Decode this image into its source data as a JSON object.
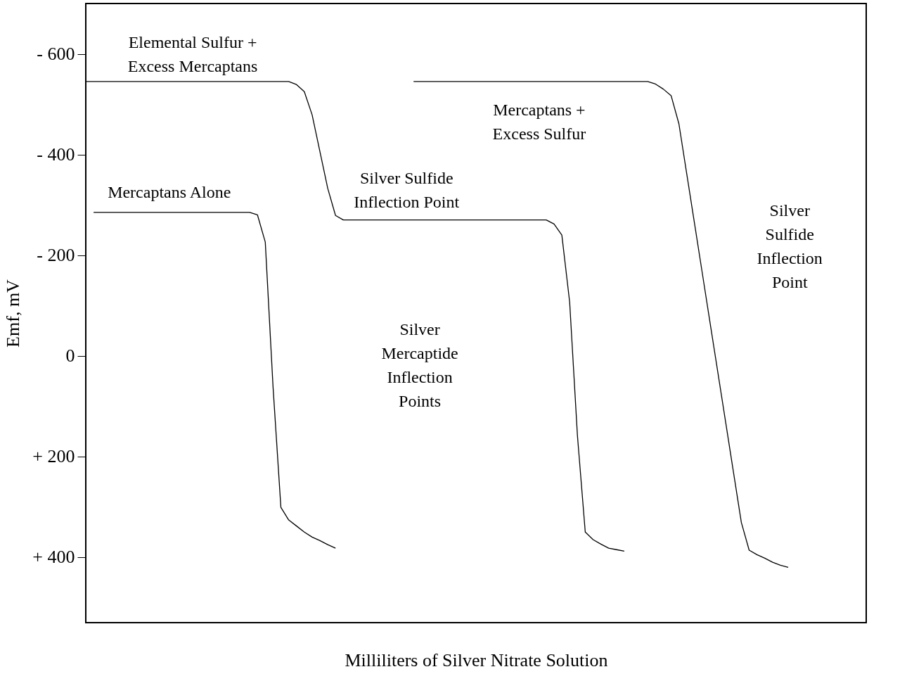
{
  "chart_data": {
    "type": "line",
    "xlabel": "Milliliters of Silver Nitrate Solution",
    "ylabel": "Emf, mV",
    "categories": [
      null,
      null,
      null,
      null,
      null,
      null,
      null,
      null,
      null,
      null,
      null,
      null,
      null,
      null,
      null,
      null,
      null,
      null,
      null,
      null,
      null,
      null,
      null,
      null,
      null,
      null,
      null,
      null,
      null,
      null,
      null,
      null,
      null,
      null,
      null,
      null,
      null,
      null,
      null,
      null,
      null,
      null,
      null,
      null,
      null,
      null,
      null,
      null,
      null,
      null,
      null,
      null,
      null,
      null,
      null,
      null,
      null,
      null,
      null,
      null,
      null,
      null,
      null,
      null,
      null,
      null,
      null,
      null,
      null,
      null,
      null,
      null,
      null,
      null,
      null,
      null,
      null,
      null,
      null,
      null,
      null,
      null,
      null,
      null,
      null,
      null,
      null,
      null,
      null,
      null,
      null,
      null,
      null,
      null,
      null,
      null,
      null,
      null,
      null,
      null,
      null
    ],
    "ylim": [
      530,
      -700
    ],
    "yticks": [
      {
        "value": -600,
        "label": "- 600"
      },
      {
        "value": -400,
        "label": "- 400"
      },
      {
        "value": -200,
        "label": "- 200"
      },
      {
        "value": 0,
        "label": "0"
      },
      {
        "value": 200,
        "label": "+ 200"
      },
      {
        "value": 400,
        "label": "+ 400"
      }
    ],
    "tick_labels": "y",
    "grid": false,
    "legend": false,
    "marker": "none",
    "line_style": "solid",
    "series": [
      {
        "color": "#000000",
        "values": [
          null,
          -285,
          -285,
          -285,
          -285,
          -285,
          -285,
          -285,
          -285,
          -285,
          -285,
          -285,
          -285,
          -285,
          -285,
          -285,
          -285,
          -285,
          -285,
          -285,
          -285,
          -285,
          -280,
          -226,
          63,
          301,
          326,
          338,
          350,
          360,
          367,
          375,
          382,
          null,
          null,
          null,
          null,
          null,
          null,
          null,
          null,
          null,
          null,
          null,
          null,
          null,
          null,
          null,
          null,
          null,
          null,
          null,
          null,
          null,
          null,
          null,
          null,
          null,
          null,
          null,
          null,
          null,
          null,
          null,
          null,
          null,
          null,
          null,
          null,
          null,
          null,
          null,
          null,
          null,
          null,
          null,
          null,
          null,
          null,
          null,
          null,
          null,
          null,
          null,
          null,
          null,
          null,
          null,
          null,
          null,
          null,
          null,
          null,
          null,
          null,
          null,
          null,
          null,
          null,
          null,
          null
        ]
      },
      {
        "color": "#000000",
        "values": [
          -545,
          -545,
          -545,
          -545,
          -545,
          -545,
          -545,
          -545,
          -545,
          -545,
          -545,
          -545,
          -545,
          -545,
          -545,
          -545,
          -545,
          -545,
          -545,
          -545,
          -545,
          -545,
          -545,
          -545,
          -545,
          -545,
          -545,
          -539,
          -525,
          -479,
          -406,
          -333,
          -279,
          -270,
          -270,
          -270,
          -270,
          -270,
          -270,
          -270,
          -270,
          -270,
          -270,
          -270,
          -270,
          -270,
          -270,
          -270,
          -270,
          -270,
          -270,
          -270,
          -270,
          -270,
          -270,
          -270,
          -270,
          -270,
          -270,
          -270,
          -262,
          -240,
          -107,
          159,
          350,
          365,
          374,
          382,
          385,
          388,
          null,
          null,
          null,
          null,
          null,
          null,
          null,
          null,
          null,
          null,
          null,
          null,
          null,
          null,
          null,
          null,
          null,
          null,
          null,
          null,
          null,
          null,
          null,
          null,
          null,
          null,
          null,
          null,
          null,
          null,
          null
        ]
      },
      {
        "color": "#000000",
        "values": [
          null,
          null,
          null,
          null,
          null,
          null,
          null,
          null,
          null,
          null,
          null,
          null,
          null,
          null,
          null,
          null,
          null,
          null,
          null,
          null,
          null,
          null,
          null,
          null,
          null,
          null,
          null,
          null,
          null,
          null,
          null,
          null,
          null,
          null,
          null,
          null,
          null,
          null,
          null,
          null,
          null,
          null,
          -545,
          -545,
          -545,
          -545,
          -545,
          -545,
          -545,
          -545,
          -545,
          -545,
          -545,
          -545,
          -545,
          -545,
          -545,
          -545,
          -545,
          -545,
          -545,
          -545,
          -545,
          -545,
          -545,
          -545,
          -545,
          -545,
          -545,
          -545,
          -545,
          -545,
          -545,
          -540,
          -530,
          -517,
          -461,
          -362,
          -263,
          -164,
          -65,
          34,
          133,
          232,
          331,
          386,
          395,
          402,
          410,
          416,
          420,
          null,
          null,
          null,
          null,
          null,
          null,
          null,
          null,
          null,
          null
        ]
      }
    ],
    "annotations": [
      "Elemental Sulfur +\nExcess Mercaptans",
      "Mercaptans Alone",
      "Silver Sulfide\nInflection Point",
      "Mercaptans +\nExcess Sulfur",
      "Silver\nSulfide\nInflection\nPoint",
      "Silver\nMercaptide\nInflection\nPoints"
    ]
  }
}
